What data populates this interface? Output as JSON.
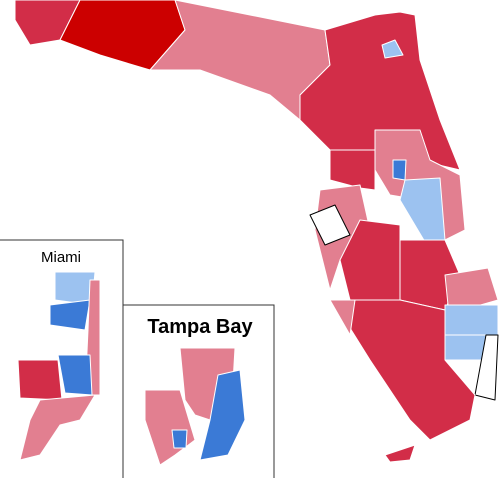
{
  "insets": [
    {
      "title": "Miami"
    },
    {
      "title": "Tampa Bay"
    }
  ]
}
